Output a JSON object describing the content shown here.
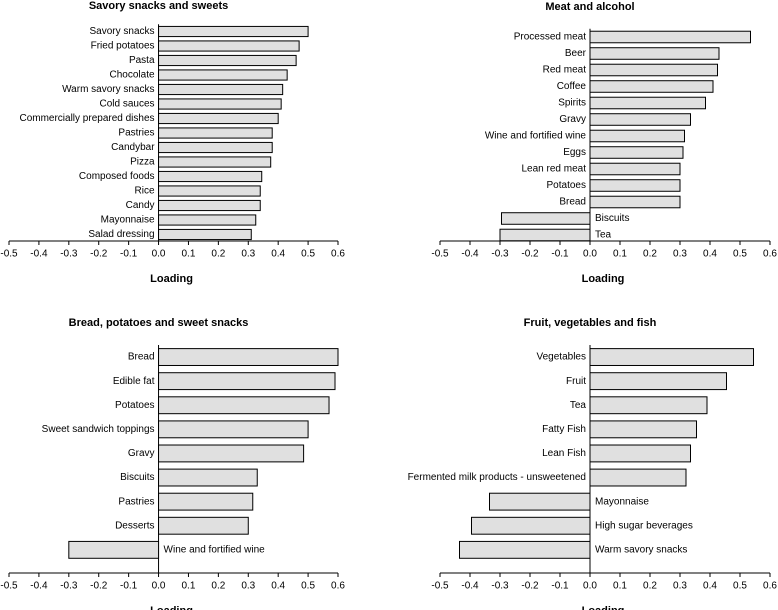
{
  "chart_data": [
    {
      "type": "barh",
      "title": "Savory snacks and sweets",
      "x_label": "Loading",
      "color": "#e0e0e0",
      "categories": [
        "Savory snacks",
        "Fried potatoes",
        "Pasta",
        "Chocolate",
        "Warm savory snacks",
        "Cold sauces",
        "Commercially prepared dishes",
        "Pastries",
        "Candybar",
        "Pizza",
        "Composed foods",
        "Rice",
        "Candy",
        "Mayonnaise",
        "Salad dressing"
      ],
      "values": [
        0.5,
        0.47,
        0.46,
        0.43,
        0.415,
        0.41,
        0.4,
        0.38,
        0.38,
        0.375,
        0.345,
        0.34,
        0.34,
        0.325,
        0.31
      ],
      "xlim": [
        -0.5,
        0.6
      ],
      "xticks": [
        -0.5,
        -0.4,
        -0.3,
        -0.2,
        -0.1,
        {
          "value": 0,
          "label": "0.0"
        },
        0.1,
        0.2,
        0.3,
        0.4,
        0.5,
        0.6
      ]
    },
    {
      "type": "barh",
      "title": "Meat and alcohol",
      "x_label": "Loading",
      "color": "#e0e0e0",
      "categories": [
        "Processed meat",
        "Beer",
        "Red meat",
        "Coffee",
        "Spirits",
        "Gravy",
        "Wine and fortified wine",
        "Eggs",
        "Lean red meat",
        "Potatoes",
        "Bread",
        "Biscuits",
        "Tea"
      ],
      "values": [
        0.535,
        0.43,
        0.425,
        0.41,
        0.385,
        0.335,
        0.315,
        0.31,
        0.3,
        0.3,
        0.3,
        -0.295,
        -0.3
      ],
      "xlim": [
        -0.5,
        0.6
      ],
      "xticks": [
        -0.5,
        -0.4,
        -0.3,
        -0.2,
        -0.1,
        {
          "value": 0,
          "label": "0.0"
        },
        0.1,
        0.2,
        0.3,
        0.4,
        0.5,
        0.6
      ]
    },
    {
      "type": "barh",
      "title": "Bread, potatoes and sweet snacks",
      "x_label": "Loading",
      "color": "#e0e0e0",
      "categories": [
        "Bread",
        "Edible fat",
        "Potatoes",
        "Sweet sandwich toppings",
        "Gravy",
        "Biscuits",
        "Pastries",
        "Desserts",
        "Wine and fortified wine"
      ],
      "values": [
        0.6,
        0.59,
        0.57,
        0.5,
        0.485,
        0.33,
        0.315,
        0.3,
        -0.3
      ],
      "xlim": [
        -0.5,
        0.6
      ],
      "xticks": [
        -0.5,
        -0.4,
        -0.3,
        -0.2,
        -0.1,
        {
          "value": 0,
          "label": "0.0"
        },
        0.1,
        0.2,
        0.3,
        0.4,
        0.5,
        0.6
      ]
    },
    {
      "type": "barh",
      "title": "Fruit, vegetables and fish",
      "x_label": "Loading",
      "color": "#e0e0e0",
      "categories": [
        "Vegetables",
        "Fruit",
        "Tea",
        "Fatty Fish",
        "Lean Fish",
        "Fermented milk products - unsweetened",
        "Mayonnaise",
        "High sugar beverages",
        "Warm savory snacks"
      ],
      "values": [
        0.545,
        0.455,
        0.39,
        0.355,
        0.335,
        0.32,
        -0.335,
        -0.395,
        -0.435
      ],
      "xlim": [
        -0.5,
        0.6
      ],
      "xticks": [
        -0.5,
        -0.4,
        -0.3,
        -0.2,
        -0.1,
        {
          "value": 0,
          "label": "0.0"
        },
        0.1,
        0.2,
        0.3,
        0.4,
        0.5,
        0.6
      ]
    }
  ]
}
